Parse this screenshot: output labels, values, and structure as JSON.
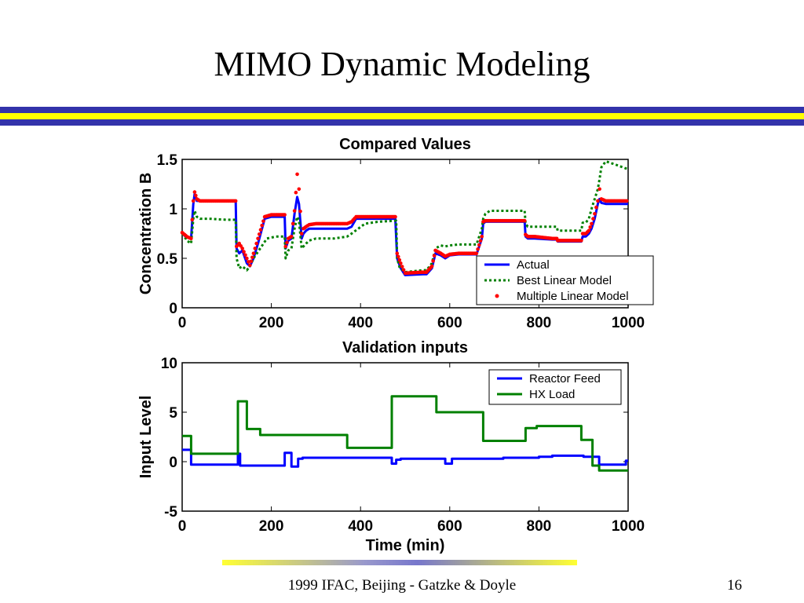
{
  "slide": {
    "title": "MIMO Dynamic Modeling",
    "footer": "1999 IFAC, Beijing - Gatzke & Doyle",
    "page_number": "16",
    "colors": {
      "stripe_blue": "#3333aa",
      "stripe_yellow": "#ffff00"
    }
  },
  "chart_data": [
    {
      "type": "line",
      "title": "Compared Values",
      "xlabel": "",
      "ylabel": "Concentration B",
      "xlim": [
        0,
        1000
      ],
      "ylim": [
        0,
        1.5
      ],
      "xticks": [
        "0",
        "200",
        "400",
        "600",
        "800",
        "1000"
      ],
      "yticks": [
        "0",
        "0.5",
        "1",
        "1.5"
      ],
      "legend_position": "right",
      "series": [
        {
          "name": "Actual",
          "style": "solid",
          "color": "#0000ff",
          "x": [
            0,
            8,
            10,
            20,
            25,
            28,
            33,
            40,
            60,
            120,
            122,
            128,
            135,
            145,
            152,
            160,
            170,
            185,
            200,
            210,
            230,
            232,
            238,
            245,
            252,
            258,
            262,
            268,
            272,
            278,
            285,
            300,
            330,
            370,
            380,
            390,
            420,
            470,
            478,
            482,
            490,
            500,
            540,
            548,
            560,
            568,
            580,
            590,
            600,
            620,
            660,
            672,
            675,
            680,
            690,
            720,
            768,
            770,
            775,
            790,
            830,
            840,
            842,
            848,
            895,
            898,
            905,
            912,
            918,
            925,
            932,
            936,
            940,
            950,
            970,
            1000
          ],
          "y": [
            0.75,
            0.72,
            0.72,
            0.7,
            1.05,
            1.15,
            1.08,
            1.08,
            1.08,
            1.08,
            0.6,
            0.55,
            0.58,
            0.45,
            0.42,
            0.5,
            0.65,
            0.9,
            0.92,
            0.92,
            0.92,
            0.6,
            0.68,
            0.7,
            0.95,
            1.12,
            1.05,
            0.7,
            0.75,
            0.78,
            0.8,
            0.8,
            0.8,
            0.8,
            0.82,
            0.9,
            0.9,
            0.9,
            0.9,
            0.5,
            0.4,
            0.33,
            0.34,
            0.34,
            0.4,
            0.55,
            0.53,
            0.5,
            0.53,
            0.54,
            0.54,
            0.7,
            0.85,
            0.87,
            0.87,
            0.87,
            0.87,
            0.72,
            0.7,
            0.7,
            0.69,
            0.69,
            0.67,
            0.67,
            0.67,
            0.72,
            0.72,
            0.75,
            0.8,
            0.9,
            1.05,
            1.1,
            1.06,
            1.05,
            1.05,
            1.05
          ]
        },
        {
          "name": "Best Linear Model",
          "style": "dotted",
          "color": "#008000",
          "x": [
            0,
            8,
            10,
            20,
            25,
            28,
            33,
            40,
            60,
            100,
            120,
            122,
            128,
            135,
            145,
            152,
            160,
            175,
            190,
            210,
            230,
            232,
            238,
            245,
            252,
            258,
            262,
            268,
            272,
            278,
            285,
            300,
            340,
            370,
            380,
            410,
            440,
            480,
            482,
            488,
            495,
            500,
            540,
            548,
            560,
            568,
            580,
            590,
            600,
            620,
            660,
            672,
            675,
            680,
            690,
            720,
            768,
            770,
            775,
            790,
            830,
            840,
            842,
            848,
            895,
            898,
            905,
            912,
            918,
            925,
            932,
            936,
            940,
            950,
            970,
            1000
          ],
          "y": [
            0.75,
            0.7,
            0.68,
            0.65,
            0.9,
            0.98,
            0.92,
            0.9,
            0.9,
            0.89,
            0.89,
            0.5,
            0.4,
            0.42,
            0.38,
            0.42,
            0.5,
            0.6,
            0.7,
            0.72,
            0.72,
            0.5,
            0.58,
            0.6,
            0.8,
            0.92,
            0.88,
            0.6,
            0.62,
            0.65,
            0.68,
            0.7,
            0.7,
            0.72,
            0.75,
            0.85,
            0.87,
            0.88,
            0.5,
            0.4,
            0.38,
            0.36,
            0.38,
            0.38,
            0.45,
            0.6,
            0.63,
            0.62,
            0.63,
            0.64,
            0.64,
            0.8,
            0.9,
            0.95,
            0.98,
            0.98,
            0.98,
            0.85,
            0.82,
            0.82,
            0.82,
            0.82,
            0.78,
            0.78,
            0.78,
            0.86,
            0.86,
            0.9,
            1.0,
            1.1,
            1.2,
            1.3,
            1.42,
            1.48,
            1.45,
            1.4
          ]
        },
        {
          "name": "Multiple Linear Model",
          "style": "markers",
          "color": "#ff0000",
          "x": [
            0,
            8,
            10,
            20,
            25,
            28,
            33,
            40,
            60,
            120,
            122,
            128,
            135,
            145,
            152,
            160,
            170,
            185,
            200,
            210,
            230,
            232,
            238,
            245,
            252,
            258,
            262,
            268,
            272,
            278,
            285,
            300,
            330,
            370,
            380,
            390,
            420,
            470,
            478,
            482,
            490,
            500,
            540,
            548,
            560,
            568,
            580,
            590,
            600,
            620,
            660,
            672,
            675,
            680,
            690,
            720,
            768,
            770,
            775,
            790,
            830,
            840,
            842,
            848,
            895,
            898,
            905,
            912,
            918,
            925,
            932,
            936,
            940,
            950,
            970,
            1000
          ],
          "y": [
            0.76,
            0.73,
            0.72,
            0.7,
            1.08,
            1.17,
            1.1,
            1.08,
            1.08,
            1.08,
            0.62,
            0.65,
            0.6,
            0.5,
            0.43,
            0.55,
            0.7,
            0.92,
            0.94,
            0.94,
            0.94,
            0.62,
            0.7,
            0.72,
            0.98,
            1.35,
            1.2,
            0.75,
            0.8,
            0.82,
            0.84,
            0.85,
            0.85,
            0.85,
            0.87,
            0.92,
            0.92,
            0.92,
            0.92,
            0.55,
            0.45,
            0.35,
            0.36,
            0.36,
            0.42,
            0.58,
            0.55,
            0.52,
            0.54,
            0.55,
            0.55,
            0.72,
            0.87,
            0.88,
            0.88,
            0.88,
            0.88,
            0.74,
            0.72,
            0.72,
            0.7,
            0.7,
            0.68,
            0.68,
            0.68,
            0.75,
            0.75,
            0.78,
            0.85,
            0.95,
            1.08,
            1.2,
            1.1,
            1.08,
            1.08,
            1.08
          ]
        }
      ]
    },
    {
      "type": "line",
      "title": "Validation inputs",
      "xlabel": "Time (min)",
      "ylabel": "Input Level",
      "xlim": [
        0,
        1000
      ],
      "ylim": [
        -5,
        10
      ],
      "xticks": [
        "0",
        "200",
        "400",
        "600",
        "800",
        "1000"
      ],
      "yticks": [
        "-5",
        "0",
        "5",
        "10"
      ],
      "legend_position": "top-right",
      "series": [
        {
          "name": "Reactor Feed",
          "style": "solid",
          "color": "#0000ff",
          "x": [
            0,
            20,
            20,
            125,
            125,
            130,
            130,
            230,
            230,
            245,
            245,
            260,
            260,
            270,
            270,
            470,
            470,
            480,
            480,
            490,
            490,
            590,
            590,
            605,
            605,
            720,
            720,
            800,
            800,
            830,
            830,
            900,
            900,
            935,
            935,
            995,
            995,
            1000
          ],
          "y": [
            1.2,
            1.2,
            -0.3,
            -0.3,
            0.8,
            0.8,
            -0.4,
            -0.4,
            0.9,
            0.9,
            -0.5,
            -0.5,
            0.3,
            0.3,
            0.4,
            0.4,
            -0.2,
            -0.2,
            0.2,
            0.2,
            0.3,
            0.3,
            -0.2,
            -0.2,
            0.3,
            0.3,
            0.4,
            0.4,
            0.5,
            0.5,
            0.6,
            0.6,
            0.5,
            0.5,
            -0.3,
            -0.3,
            0.1,
            0.1
          ]
        },
        {
          "name": "HX Load",
          "style": "solid",
          "color": "#008000",
          "x": [
            0,
            20,
            20,
            125,
            125,
            145,
            145,
            175,
            175,
            370,
            370,
            470,
            470,
            570,
            570,
            675,
            675,
            770,
            770,
            795,
            795,
            895,
            895,
            920,
            920,
            935,
            935,
            1000
          ],
          "y": [
            2.6,
            2.6,
            0.8,
            0.8,
            6.1,
            6.1,
            3.3,
            3.3,
            2.7,
            2.7,
            1.4,
            1.4,
            6.6,
            6.6,
            5.0,
            5.0,
            2.1,
            2.1,
            3.4,
            3.4,
            3.6,
            3.6,
            2.2,
            2.2,
            -0.4,
            -0.4,
            -0.9,
            -0.9
          ]
        }
      ]
    }
  ]
}
